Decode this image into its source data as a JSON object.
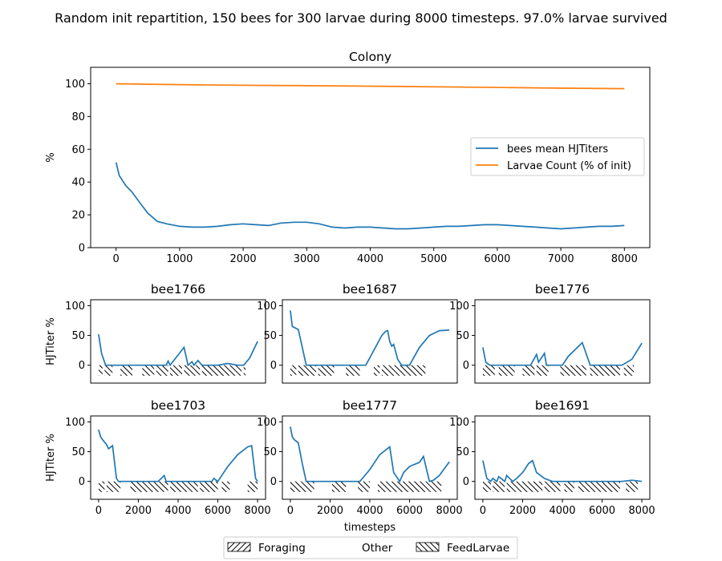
{
  "figure_title": "Random init repartition, 150 bees for 300 larvae during 8000 timesteps. 97.0% larvae survived",
  "colors": {
    "hjtiter": "#1f77b4",
    "larvae": "#ff7f0e",
    "axes": "#000000",
    "background": "#ffffff"
  },
  "chart_data": [
    {
      "type": "line",
      "title": "Colony",
      "ylabel": "%",
      "xlim": [
        -400,
        8400
      ],
      "ylim": [
        0,
        110
      ],
      "xticks": [
        0,
        1000,
        2000,
        3000,
        4000,
        5000,
        6000,
        7000,
        8000
      ],
      "yticks": [
        0,
        20,
        40,
        60,
        80,
        100
      ],
      "legend_position": "center-right",
      "series": [
        {
          "name": "bees mean HJTiters",
          "color": "#1f77b4",
          "x": [
            0,
            50,
            150,
            250,
            400,
            500,
            650,
            800,
            1000,
            1200,
            1400,
            1600,
            1800,
            2000,
            2200,
            2400,
            2600,
            2800,
            3000,
            3200,
            3400,
            3600,
            3800,
            4000,
            4200,
            4400,
            4600,
            4800,
            5000,
            5200,
            5400,
            5600,
            5800,
            6000,
            6200,
            6400,
            6600,
            6800,
            7000,
            7200,
            7400,
            7600,
            7800,
            8000
          ],
          "y": [
            52,
            44,
            38,
            34,
            26,
            21,
            16,
            14.5,
            13,
            12.5,
            12.5,
            13,
            14,
            14.5,
            14,
            13.5,
            15,
            15.5,
            15.5,
            14.5,
            12.5,
            12,
            12.5,
            12.5,
            12,
            11.5,
            11.5,
            12,
            12.5,
            13,
            13,
            13.5,
            14,
            14,
            13.5,
            13,
            12.5,
            12,
            11.5,
            12,
            12.5,
            13,
            13,
            13.5
          ]
        },
        {
          "name": "Larvae Count (% of init)",
          "color": "#ff7f0e",
          "x": [
            0,
            500,
            1300,
            2200,
            3400,
            4500,
            6100,
            7000,
            8000
          ],
          "y": [
            100,
            99.7,
            99.3,
            99.0,
            98.7,
            98.3,
            97.7,
            97.3,
            97.0
          ]
        }
      ]
    },
    {
      "type": "line",
      "title": "bee1766",
      "ylabel": "HJTiter %",
      "xlabel": "",
      "xlim": [
        -400,
        8400
      ],
      "ylim": [
        -30,
        110
      ],
      "yticks": [
        0,
        50,
        100
      ],
      "xticks": [],
      "series": [
        {
          "color": "#1f77b4",
          "x": [
            0,
            150,
            350,
            500,
            1000,
            2000,
            3000,
            3400,
            3500,
            3600,
            4300,
            4400,
            4500,
            4700,
            4800,
            5000,
            5200,
            5500,
            6000,
            6500,
            7000,
            7300,
            7600,
            8000
          ],
          "y": [
            52,
            20,
            0,
            0,
            0,
            0,
            0,
            0,
            7,
            0,
            30,
            15,
            0,
            6,
            0,
            8,
            0,
            0,
            0,
            3,
            0,
            0,
            12,
            40
          ]
        }
      ],
      "activity_bars": [
        [
          0,
          200
        ],
        [
          300,
          700
        ],
        [
          1100,
          1700
        ],
        [
          2200,
          2800
        ],
        [
          2900,
          3500
        ],
        [
          3600,
          4200
        ],
        [
          4300,
          4800
        ],
        [
          4800,
          5100
        ],
        [
          5200,
          6000
        ],
        [
          6000,
          7000
        ],
        [
          7000,
          7200
        ],
        [
          7300,
          7400
        ]
      ]
    },
    {
      "type": "line",
      "title": "bee1687",
      "ylabel": "",
      "xlabel": "",
      "xlim": [
        -400,
        8400
      ],
      "ylim": [
        -30,
        110
      ],
      "yticks": [
        0,
        50,
        100
      ],
      "xticks": [],
      "series": [
        {
          "color": "#1f77b4",
          "x": [
            0,
            100,
            400,
            600,
            800,
            1000,
            2000,
            3000,
            3300,
            3500,
            3800,
            4200,
            4600,
            4800,
            4900,
            5000,
            5100,
            5200,
            5400,
            5600,
            6000,
            6500,
            7000,
            7500,
            8000
          ],
          "y": [
            92,
            65,
            60,
            30,
            0,
            0,
            0,
            0,
            0,
            0,
            0,
            25,
            50,
            57,
            58,
            40,
            32,
            35,
            10,
            0,
            0,
            30,
            50,
            58,
            59
          ]
        }
      ],
      "activity_bars": [
        [
          0,
          300
        ],
        [
          400,
          1300
        ],
        [
          1400,
          2200
        ],
        [
          2800,
          3500
        ],
        [
          4200,
          4500
        ],
        [
          4600,
          5100
        ],
        [
          5100,
          5700
        ],
        [
          5700,
          6200
        ],
        [
          6200,
          6800
        ]
      ]
    },
    {
      "type": "line",
      "title": "bee1776",
      "ylabel": "",
      "xlabel": "",
      "xlim": [
        -400,
        8400
      ],
      "ylim": [
        -30,
        110
      ],
      "yticks": [
        0,
        50,
        100
      ],
      "xticks": [],
      "series": [
        {
          "color": "#1f77b4",
          "x": [
            0,
            150,
            350,
            1000,
            2000,
            2400,
            2700,
            2800,
            3100,
            3200,
            3500,
            4000,
            4300,
            5000,
            5400,
            5500,
            6000,
            7000,
            7500,
            8000
          ],
          "y": [
            30,
            5,
            0,
            0,
            0,
            0,
            18,
            5,
            20,
            0,
            0,
            0,
            15,
            38,
            0,
            0,
            0,
            0,
            10,
            37
          ]
        }
      ],
      "activity_bars": [
        [
          0,
          600
        ],
        [
          800,
          1600
        ],
        [
          2000,
          2600
        ],
        [
          2700,
          3300
        ],
        [
          3900,
          4600
        ],
        [
          4600,
          5200
        ],
        [
          5400,
          6200
        ],
        [
          6200,
          6900
        ],
        [
          7100,
          7600
        ]
      ]
    },
    {
      "type": "line",
      "title": "bee1703",
      "ylabel": "HJTiter %",
      "xlabel": "",
      "xlim": [
        -400,
        8400
      ],
      "ylim": [
        -30,
        110
      ],
      "yticks": [
        0,
        50,
        100
      ],
      "xticks": [
        0,
        2000,
        4000,
        6000,
        8000
      ],
      "series": [
        {
          "color": "#1f77b4",
          "x": [
            0,
            100,
            200,
            400,
            500,
            700,
            900,
            1000,
            2000,
            3000,
            3300,
            3400,
            3500,
            4000,
            5000,
            5700,
            5800,
            6000,
            6500,
            7000,
            7500,
            7700,
            7900,
            8000
          ],
          "y": [
            87,
            75,
            70,
            62,
            55,
            60,
            5,
            0,
            0,
            0,
            10,
            0,
            0,
            0,
            0,
            0,
            5,
            0,
            25,
            45,
            58,
            60,
            5,
            0
          ]
        }
      ],
      "activity_bars": [
        [
          0,
          300
        ],
        [
          400,
          1100
        ],
        [
          1600,
          2200
        ],
        [
          2200,
          2800
        ],
        [
          2800,
          3500
        ],
        [
          3600,
          4300
        ],
        [
          4300,
          5000
        ],
        [
          5100,
          6000
        ],
        [
          6200,
          6600
        ],
        [
          7500,
          8000
        ]
      ]
    },
    {
      "type": "line",
      "title": "bee1777",
      "ylabel": "",
      "xlabel": "timesteps",
      "xlim": [
        -400,
        8400
      ],
      "ylim": [
        -30,
        110
      ],
      "yticks": [
        0,
        50,
        100
      ],
      "xticks": [
        0,
        2000,
        4000,
        6000,
        8000
      ],
      "series": [
        {
          "color": "#1f77b4",
          "x": [
            0,
            100,
            200,
            400,
            600,
            800,
            1000,
            2000,
            3000,
            3500,
            4000,
            4500,
            5000,
            5200,
            5500,
            5700,
            6000,
            6200,
            6500,
            6700,
            7000,
            7200,
            7500,
            8000
          ],
          "y": [
            92,
            75,
            70,
            65,
            30,
            0,
            0,
            0,
            0,
            0,
            20,
            45,
            58,
            15,
            0,
            15,
            25,
            28,
            32,
            42,
            0,
            2,
            10,
            33
          ]
        }
      ],
      "activity_bars": [
        [
          0,
          600
        ],
        [
          600,
          1200
        ],
        [
          2100,
          2800
        ],
        [
          3400,
          4000
        ],
        [
          4400,
          5100
        ],
        [
          5100,
          5800
        ],
        [
          5800,
          6400
        ],
        [
          6400,
          7000
        ],
        [
          7000,
          7600
        ]
      ]
    },
    {
      "type": "line",
      "title": "bee1691",
      "ylabel": "",
      "xlabel": "",
      "xlim": [
        -400,
        8400
      ],
      "ylim": [
        -30,
        110
      ],
      "yticks": [
        0,
        50,
        100
      ],
      "xticks": [
        0,
        2000,
        4000,
        6000,
        8000
      ],
      "series": [
        {
          "color": "#1f77b4",
          "x": [
            0,
            200,
            400,
            500,
            700,
            800,
            1100,
            1200,
            1500,
            1700,
            2000,
            2300,
            2500,
            2700,
            2900,
            3100,
            3500,
            4000,
            5000,
            6000,
            7000,
            7500,
            8000
          ],
          "y": [
            35,
            5,
            0,
            5,
            0,
            8,
            0,
            10,
            0,
            5,
            15,
            30,
            35,
            15,
            10,
            5,
            0,
            0,
            0,
            0,
            0,
            2,
            0
          ]
        }
      ],
      "activity_bars": [
        [
          0,
          400
        ],
        [
          500,
          1100
        ],
        [
          1200,
          1900
        ],
        [
          1900,
          2300
        ],
        [
          2300,
          3000
        ],
        [
          3100,
          3900
        ],
        [
          4100,
          4600
        ],
        [
          4800,
          5400
        ],
        [
          5400,
          6000
        ],
        [
          6000,
          6900
        ],
        [
          7200,
          7800
        ]
      ]
    }
  ],
  "legend": {
    "items": [
      {
        "label": "Foraging",
        "hatch": "forward"
      },
      {
        "label": "Other",
        "hatch": "none"
      },
      {
        "label": "FeedLarvae",
        "hatch": "back"
      }
    ]
  }
}
